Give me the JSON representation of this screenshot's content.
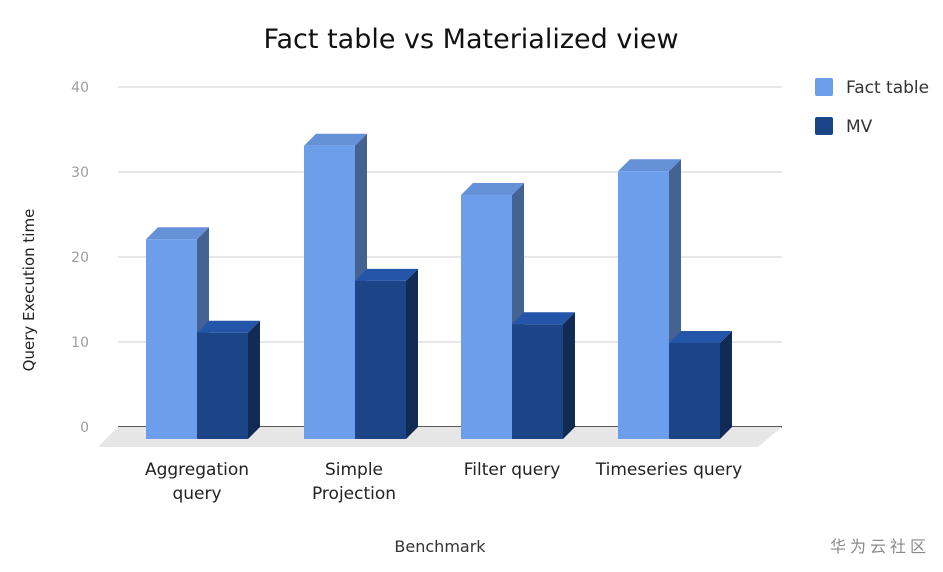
{
  "chart_data": {
    "type": "bar",
    "title": "Fact table vs Materialized view",
    "xlabel": "Benchmark",
    "ylabel": "Query Execution time",
    "categories": [
      "Aggregation\nquery",
      "Simple\nProjection",
      "Filter query",
      "Timeseries query"
    ],
    "series": [
      {
        "name": "Fact table",
        "values": [
          23.5,
          34.5,
          28.7,
          31.5
        ],
        "color": "#6d9eeb"
      },
      {
        "name": "MV",
        "values": [
          12.5,
          18.6,
          13.5,
          11.3
        ],
        "color": "#1c4587"
      }
    ],
    "ylim": [
      0,
      40
    ],
    "yticks": [
      0,
      10,
      20,
      30,
      40
    ],
    "grid": true,
    "legend_position": "right",
    "three_d": true
  },
  "watermark": "华为云社区"
}
